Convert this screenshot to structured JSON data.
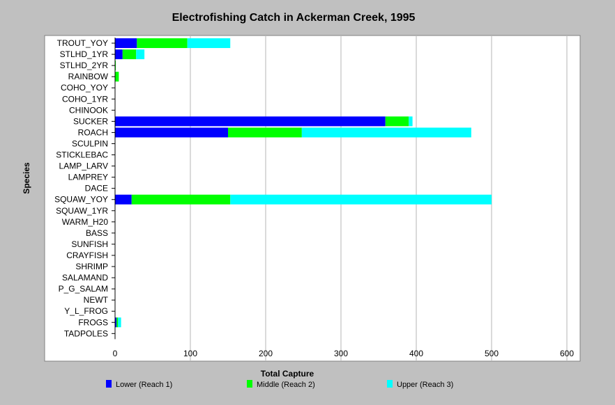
{
  "chart_data": {
    "type": "bar",
    "orientation": "horizontal",
    "stacked": true,
    "title": "Electrofishing Catch in Ackerman Creek, 1995",
    "xlabel": "Total Capture",
    "ylabel": "Species",
    "xlim": [
      0,
      600
    ],
    "xticks": [
      0,
      100,
      200,
      300,
      400,
      500,
      600
    ],
    "grid": true,
    "legend_position": "bottom",
    "categories": [
      "TROUT_YOY",
      "STLHD_1YR",
      "STLHD_2YR",
      "RAINBOW",
      "COHO_YOY",
      "COHO_1YR",
      "CHINOOK",
      "SUCKER",
      "ROACH",
      "SCULPIN",
      "STICKLEBAC",
      "LAMP_LARV",
      "LAMPREY",
      "DACE",
      "SQUAW_YOY",
      "SQUAW_1YR",
      "WARM_H20",
      "BASS",
      "SUNFISH",
      "CRAYFISH",
      "SHRIMP",
      "SALAMAND",
      "P_G_SALAM",
      "NEWT",
      "Y_L_FROG",
      "FROGS",
      "TADPOLES"
    ],
    "series": [
      {
        "name": "Lower (Reach 1)",
        "color": "#0000ff",
        "values": [
          29,
          10,
          0,
          0,
          0,
          0,
          0,
          359,
          150,
          0,
          0,
          0,
          0,
          0,
          22,
          0,
          0,
          0,
          0,
          0,
          0,
          0,
          0,
          0,
          0,
          2,
          0
        ]
      },
      {
        "name": "Middle (Reach 2)",
        "color": "#00ff00",
        "values": [
          67,
          18,
          1,
          5,
          0,
          0,
          0,
          31,
          98,
          0,
          0,
          0,
          0,
          0,
          131,
          0,
          0,
          0,
          0,
          0,
          0,
          0,
          0,
          0,
          0,
          2,
          0
        ]
      },
      {
        "name": "Upper (Reach 3)",
        "color": "#00ffff",
        "values": [
          57,
          11,
          0,
          0,
          0,
          0,
          0,
          5,
          225,
          0,
          0,
          0,
          0,
          0,
          347,
          0,
          0,
          0,
          0,
          0,
          0,
          0,
          0,
          0,
          0,
          4,
          0
        ]
      }
    ]
  }
}
